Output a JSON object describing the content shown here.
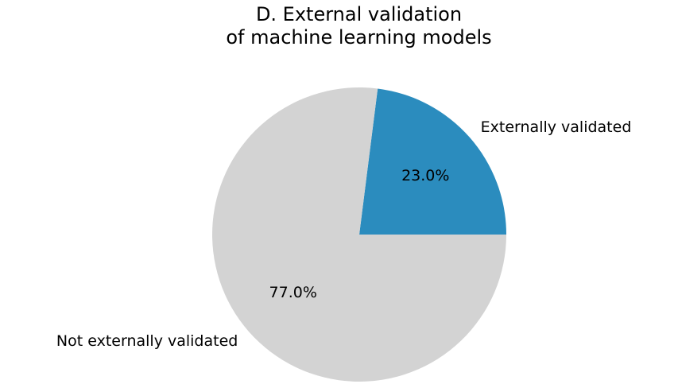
{
  "chart_data": {
    "type": "pie",
    "title": "D. External validation\nof machine learning models",
    "categories": [
      "Externally validated",
      "Not externally validated"
    ],
    "values": [
      23,
      77
    ],
    "value_labels": [
      "23.0%",
      "77.0%"
    ],
    "colors": [
      "#2b8cbe",
      "#d3d3d3"
    ]
  }
}
